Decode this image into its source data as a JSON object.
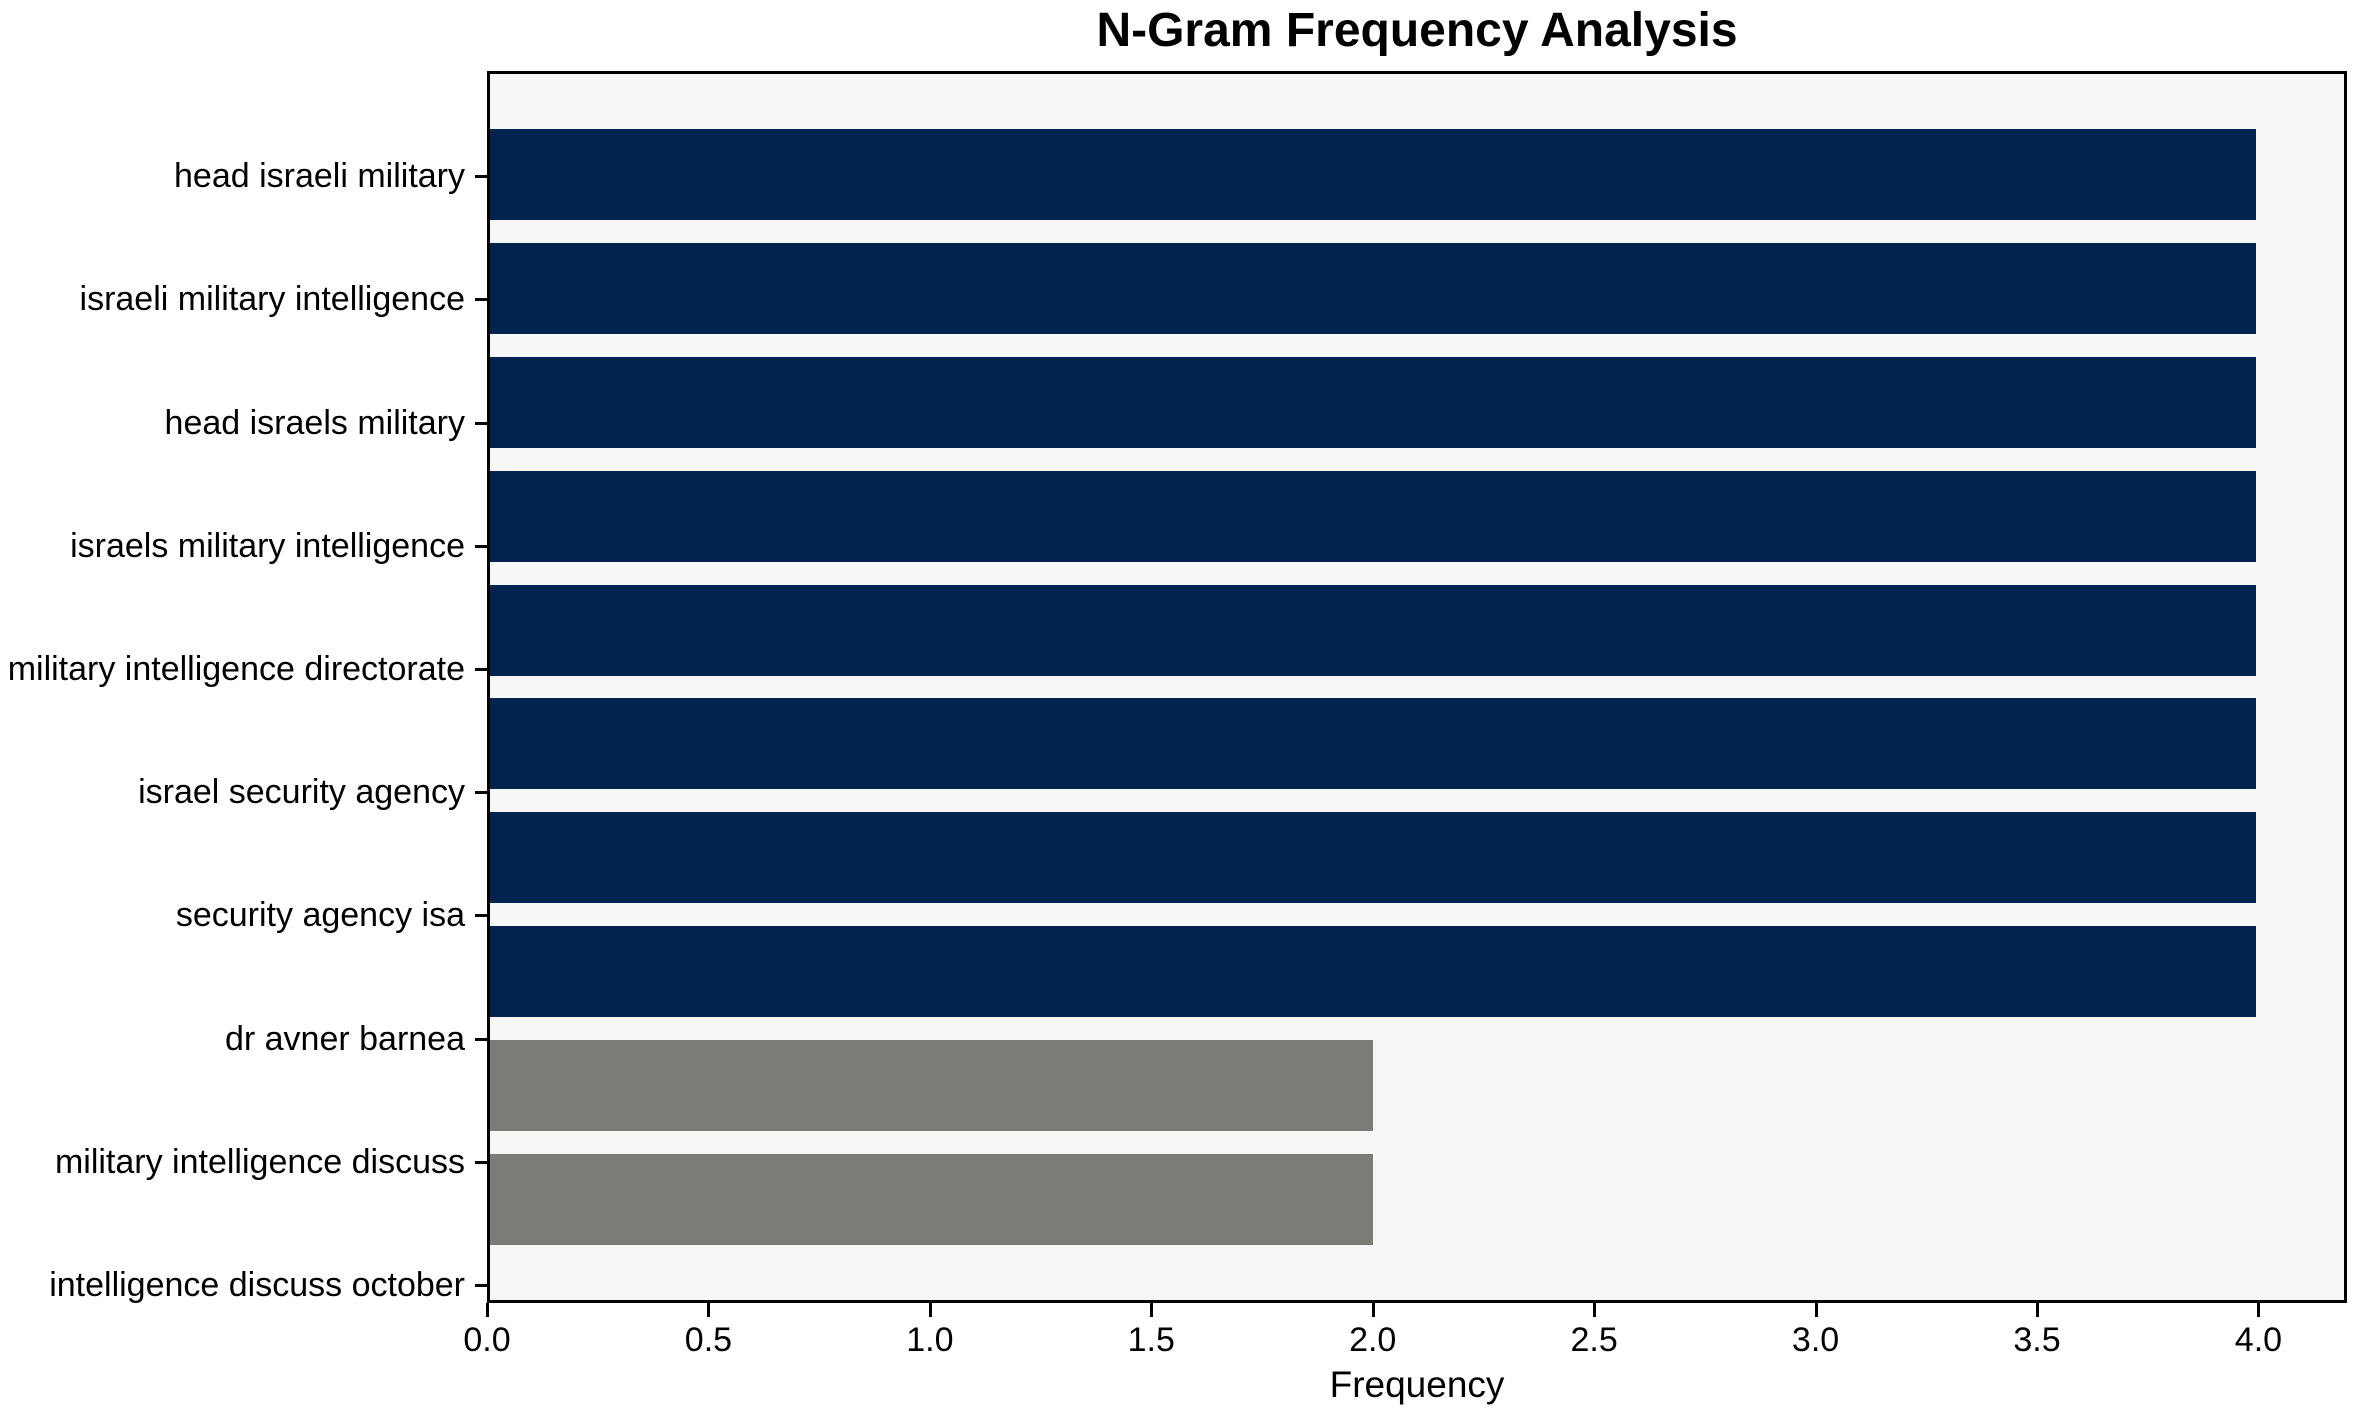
{
  "chart_data": {
    "type": "bar",
    "orientation": "horizontal",
    "title": "N-Gram Frequency Analysis",
    "xlabel": "Frequency",
    "ylabel": "",
    "categories": [
      "head israeli military",
      "israeli military intelligence",
      "head israels military",
      "israels military intelligence",
      "military intelligence directorate",
      "israel security agency",
      "security agency isa",
      "dr avner barnea",
      "military intelligence discuss",
      "intelligence discuss october"
    ],
    "values": [
      4,
      4,
      4,
      4,
      4,
      4,
      4,
      4,
      2,
      2
    ],
    "bar_colors": [
      "#02234E",
      "#02234E",
      "#02234E",
      "#02234E",
      "#02234E",
      "#02234E",
      "#02234E",
      "#02234E",
      "#7B7B78",
      "#7B7B78"
    ],
    "xlim": [
      0,
      4.2
    ],
    "xticks": [
      0,
      0.5,
      1,
      1.5,
      2,
      2.5,
      3,
      3.5,
      4
    ],
    "xtick_labels": [
      "0.0",
      "0.5",
      "1.0",
      "1.5",
      "2.0",
      "2.5",
      "3.0",
      "3.5",
      "4.0"
    ],
    "grid": false,
    "legend": false,
    "colors": {
      "bar_primary": "#02234E",
      "bar_secondary": "#7B7B78",
      "plot_background": "#F7F7F7",
      "figure_background": "#FFFFFF",
      "axis": "#000000",
      "text": "#000000"
    }
  }
}
